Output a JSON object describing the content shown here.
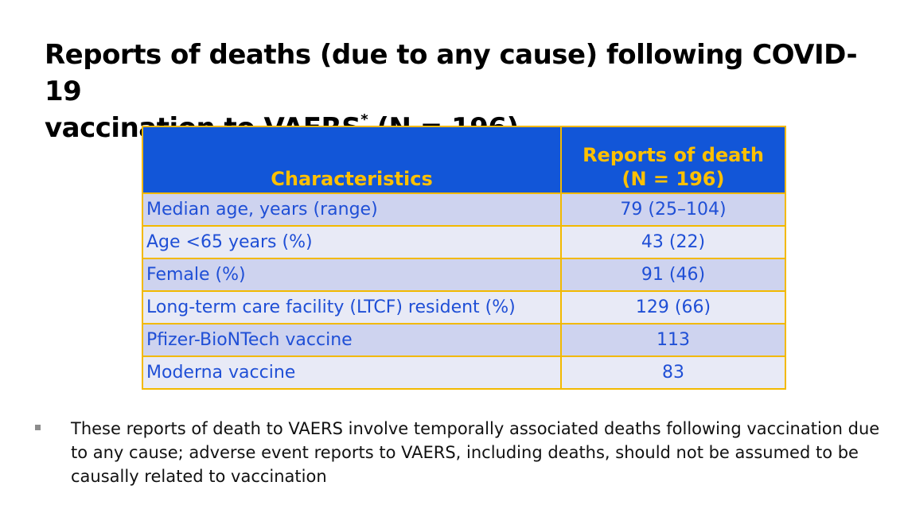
{
  "slide": {
    "title_line1": "Reports of deaths (due to any cause) following COVID-19",
    "title_line2_a": "vaccination to VAERS",
    "title_sup": "*",
    "title_line2_b": " (N = 196)"
  },
  "table": {
    "headers": {
      "characteristics": "Characteristics",
      "reports_line1": "Reports of death",
      "reports_line2": "(N = 196)"
    },
    "rows": [
      {
        "label": "Median age, years (range)",
        "value": "79 (25–104)"
      },
      {
        "label": "Age <65 years (%)",
        "value": "43 (22)"
      },
      {
        "label": "Female (%)",
        "value": "91 (46)"
      },
      {
        "label": "Long-term care facility (LTCF) resident (%)",
        "value": "129 (66)"
      },
      {
        "label": "Pfizer-BioNTech vaccine",
        "value": "113"
      },
      {
        "label": "Moderna vaccine",
        "value": "83"
      }
    ]
  },
  "note": {
    "text": "These reports of death to VAERS involve temporally associated deaths following vaccination due to any cause; adverse event reports to VAERS, including deaths, should not be assumed to be causally related to vaccination"
  }
}
